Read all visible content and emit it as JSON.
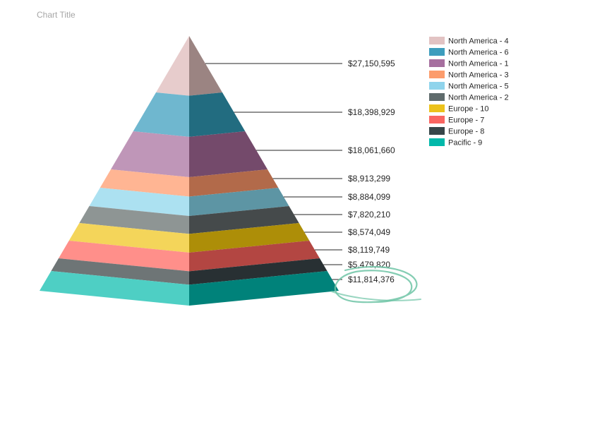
{
  "chart_data": {
    "type": "pyramid",
    "title": "Chart Title",
    "legend_position": "top-right",
    "segments": [
      {
        "name": "North America - 4",
        "value": 27150595,
        "label": "$27,150,595",
        "color": "#e7cccc",
        "color_dark": "#9b8482"
      },
      {
        "name": "North America - 6",
        "value": 18398929,
        "label": "$18,398,929",
        "color": "#6fb7cf",
        "color_dark": "#226c80"
      },
      {
        "name": "North America - 1",
        "value": 18061660,
        "label": "$18,061,660",
        "color": "#bf96b8",
        "color_dark": "#744a6b"
      },
      {
        "name": "North America - 3",
        "value": 8913299,
        "label": "$8,913,299",
        "color": "#ffb593",
        "color_dark": "#b26a4a"
      },
      {
        "name": "North America - 5",
        "value": 8884099,
        "label": "$8,884,099",
        "color": "#ace1f1",
        "color_dark": "#5d95a4"
      },
      {
        "name": "North America - 2",
        "value": 7820210,
        "label": "$7,820,210",
        "color": "#8e9594",
        "color_dark": "#454a4b"
      },
      {
        "name": "Europe - 10",
        "value": 8574049,
        "label": "$8,574,049",
        "color": "#f4d55a",
        "color_dark": "#ad8e08"
      },
      {
        "name": "Europe - 7",
        "value": 8119749,
        "label": "$8,119,749",
        "color": "#ff8f8a",
        "color_dark": "#b34642"
      },
      {
        "name": "Europe - 8",
        "value": 5479820,
        "label": "$5,479,820",
        "color": "#6e7576",
        "color_dark": "#283033"
      },
      {
        "name": "Pacific - 9",
        "value": 11814376,
        "label": "$11,814,376",
        "color": "#4ecfc4",
        "color_dark": "#00827a"
      }
    ],
    "legend": [
      {
        "name": "North America - 4",
        "color": "#e2c3c3"
      },
      {
        "name": "North America - 6",
        "color": "#3d9dbd"
      },
      {
        "name": "North America - 1",
        "color": "#a66f9f"
      },
      {
        "name": "North America - 3",
        "color": "#fc9c6c"
      },
      {
        "name": "North America - 5",
        "color": "#8fd4ec"
      },
      {
        "name": "North America - 2",
        "color": "#5f6b6c"
      },
      {
        "name": "Europe - 10",
        "color": "#ecc21b"
      },
      {
        "name": "Europe - 7",
        "color": "#f96662"
      },
      {
        "name": "Europe - 8",
        "color": "#374649"
      },
      {
        "name": "Pacific - 9",
        "color": "#01b8aa"
      }
    ]
  }
}
